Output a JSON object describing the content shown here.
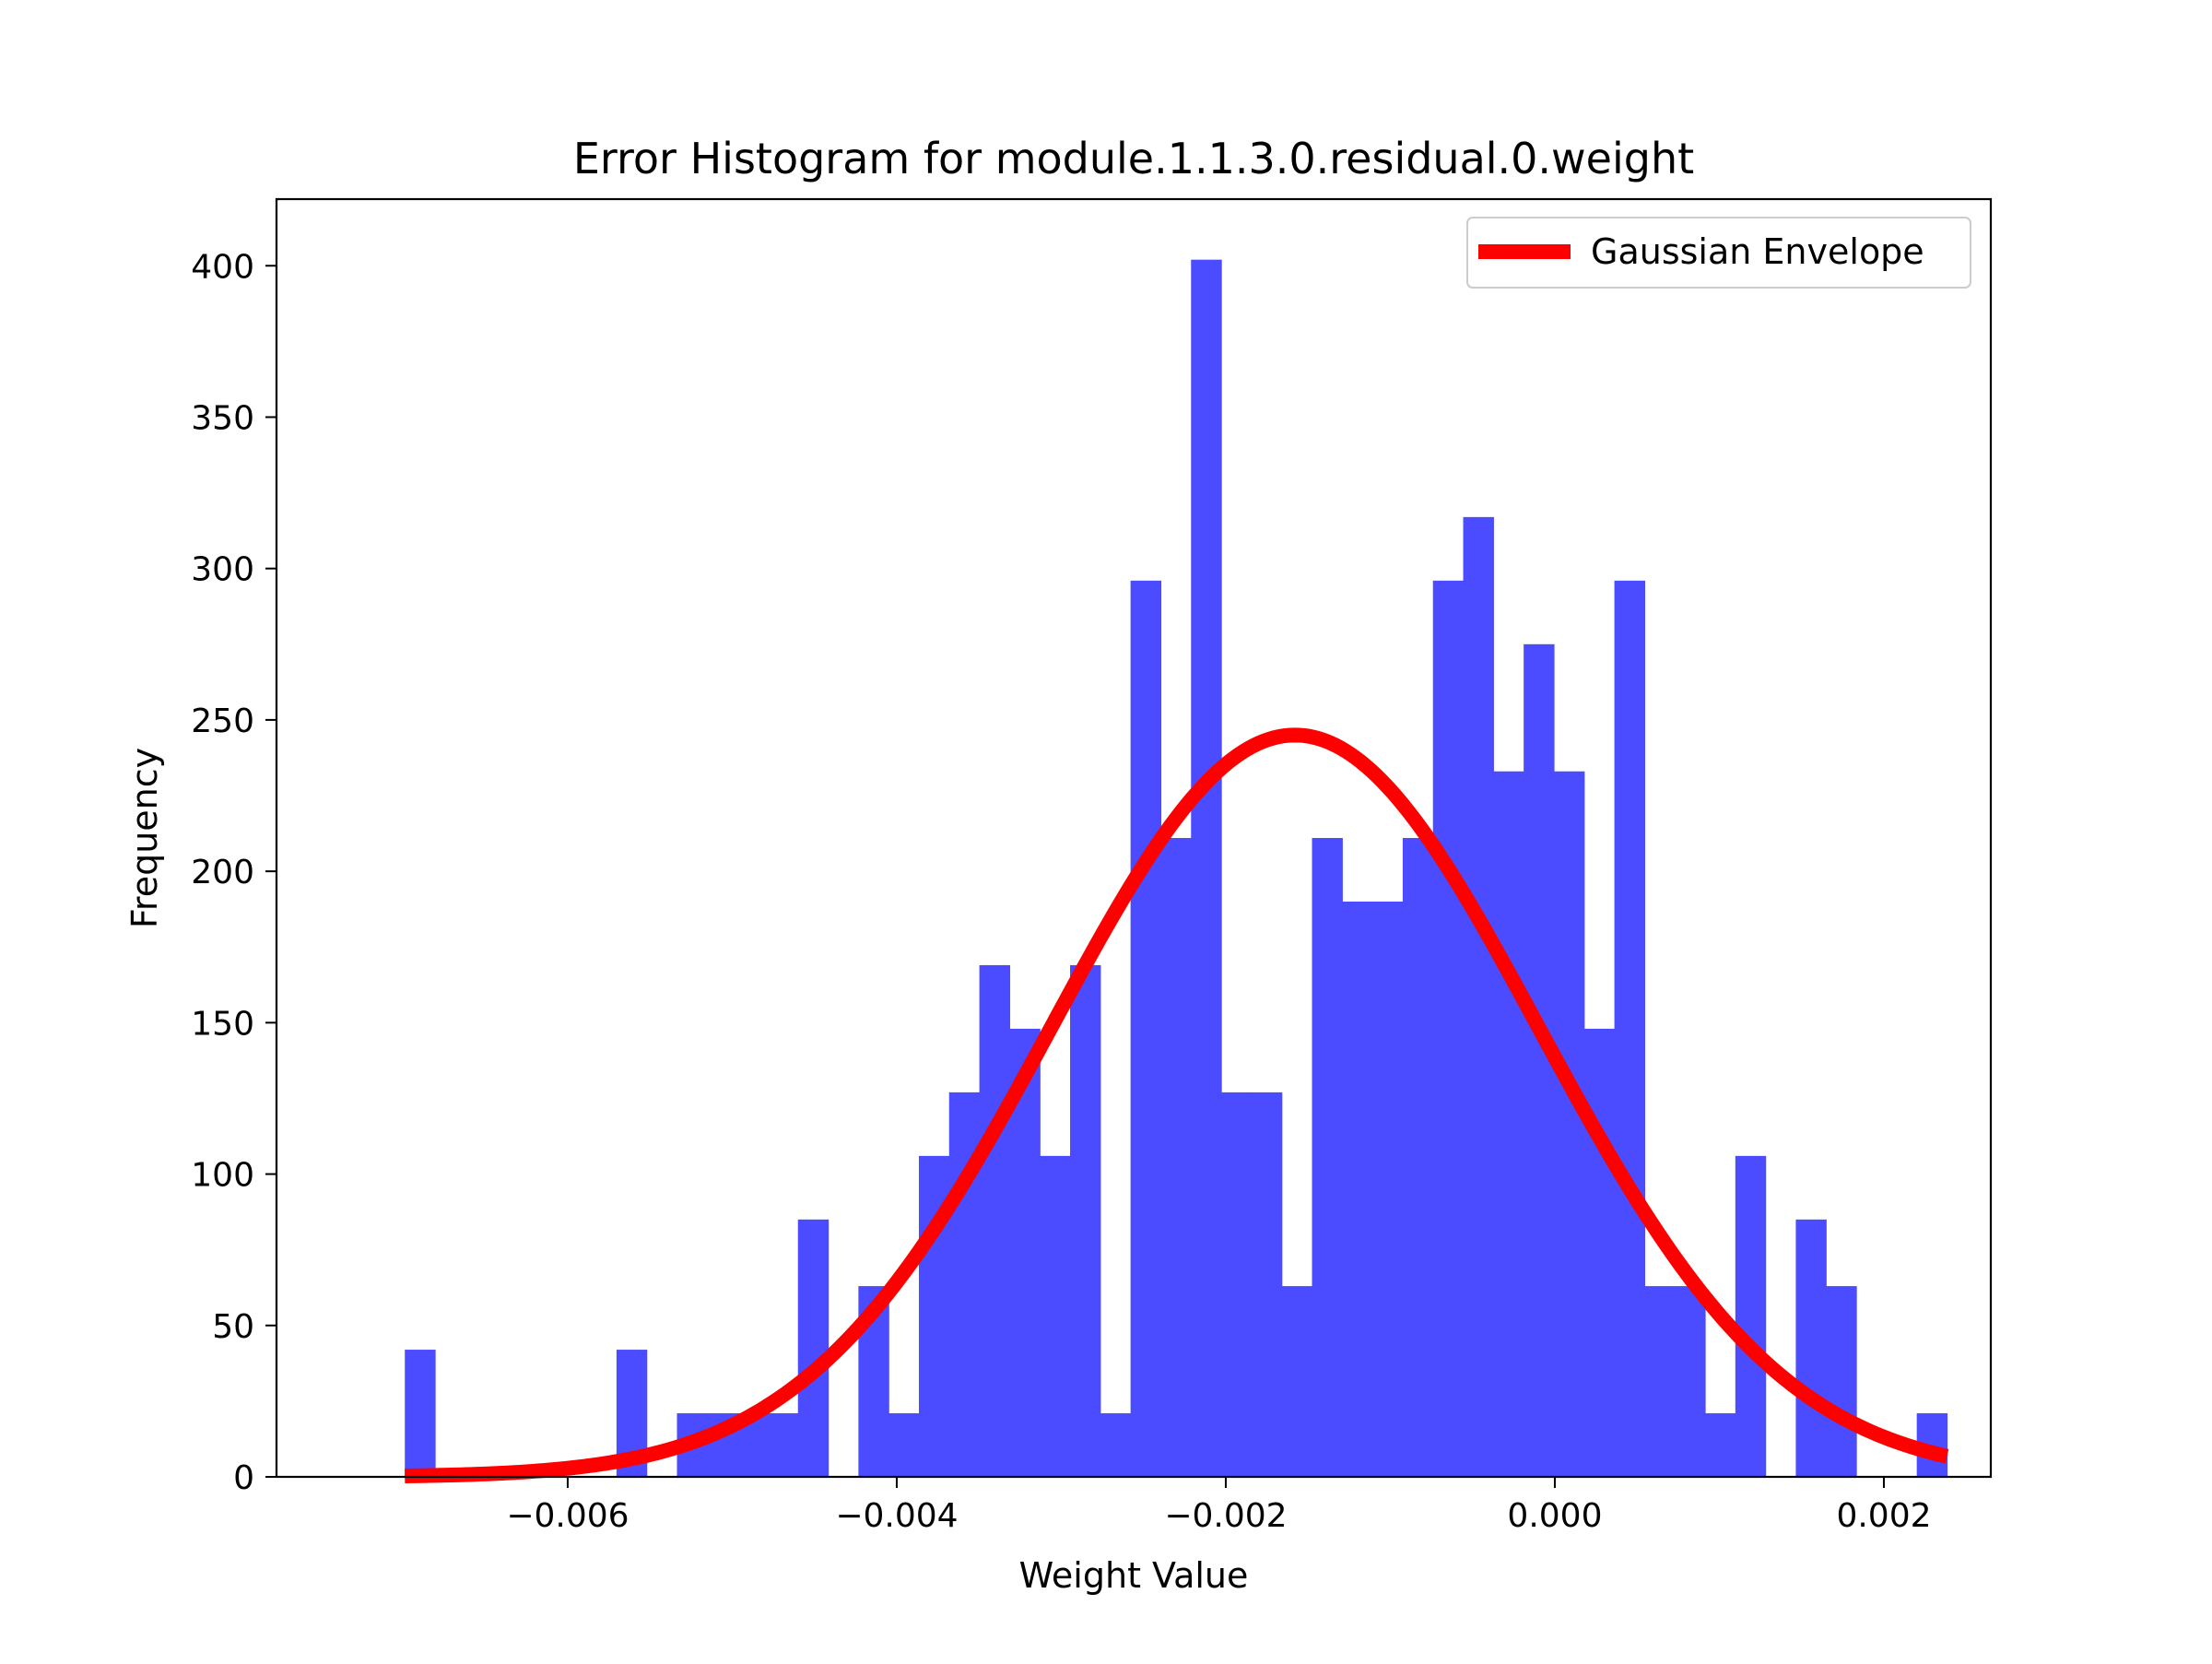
{
  "chart_data": {
    "type": "bar",
    "title": "Error Histogram for module.1.1.3.0.residual.0.weight",
    "xlabel": "Weight Value",
    "ylabel": "Frequency",
    "xlim": [
      -0.00777,
      0.00265
    ],
    "ylim": [
      0,
      422
    ],
    "xticks": [
      -0.006,
      -0.004,
      -0.002,
      0.0,
      0.002
    ],
    "xtick_labels": [
      "−0.006",
      "−0.004",
      "−0.002",
      "0.000",
      "0.002"
    ],
    "yticks": [
      0,
      50,
      100,
      150,
      200,
      250,
      300,
      350,
      400
    ],
    "ytick_labels": [
      "0",
      "50",
      "100",
      "150",
      "200",
      "250",
      "300",
      "350",
      "400"
    ],
    "grid": false,
    "legend_position": "upper right",
    "bins": {
      "start": -0.00699,
      "width": 0.0001838,
      "counts": [
        42,
        0,
        0,
        0,
        0,
        0,
        0,
        42,
        0,
        21,
        21,
        21,
        21,
        85,
        0,
        63,
        21,
        106,
        127,
        169,
        148,
        106,
        169,
        21,
        296,
        211,
        402,
        127,
        127,
        63,
        211,
        190,
        190,
        211,
        296,
        317,
        233,
        275,
        233,
        148,
        296,
        63,
        63,
        21,
        106,
        0,
        85,
        63,
        0,
        0,
        21
      ]
    },
    "series": [
      {
        "name": "",
        "kind": "histogram",
        "color": "#4b4bff"
      },
      {
        "name": "Gaussian Envelope",
        "kind": "line",
        "color": "#ff0000",
        "mean": -0.00158,
        "std": 0.00148,
        "peak": 245
      }
    ]
  }
}
